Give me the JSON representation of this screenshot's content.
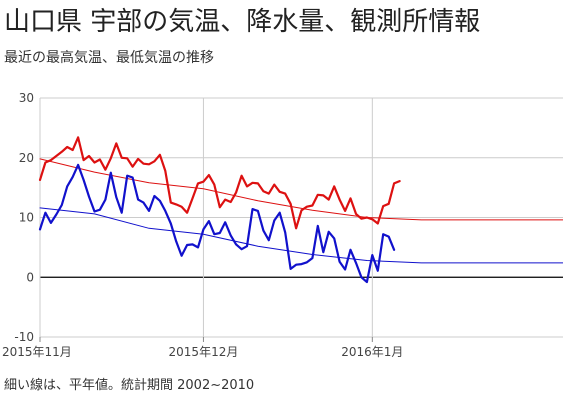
{
  "title": "山口県 宇部の気温、降水量、観測所情報",
  "subtitle": "最近の最高気温、最低気温の推移",
  "footnote": "細い線は、平年値。統計期間 2002~2010",
  "colors": {
    "high": "#dd1111",
    "low": "#1111cc",
    "normal_high": "#dd1111",
    "normal_low": "#1111cc",
    "grid": "#cccccc",
    "zero": "#000000"
  },
  "chart_data": {
    "type": "line",
    "ylim": [
      -10,
      30
    ],
    "yticks": [
      30,
      20,
      10,
      0,
      -10
    ],
    "xlabel": "",
    "ylabel": "",
    "x_range_days": [
      0,
      96
    ],
    "xticks": [
      {
        "day": 0,
        "label": "2015年11月"
      },
      {
        "day": 30,
        "label": "2015年12月"
      },
      {
        "day": 61,
        "label": "2016年1月"
      }
    ],
    "grid": true,
    "series": [
      {
        "key": "high",
        "x": [
          0,
          1,
          2,
          3,
          4,
          5,
          6,
          7,
          8,
          9,
          10,
          11,
          12,
          13,
          14,
          15,
          16,
          17,
          18,
          19,
          20,
          21,
          22,
          23,
          24,
          25,
          26,
          27,
          28,
          29,
          30,
          31,
          32,
          33,
          34,
          35,
          36,
          37,
          38,
          39,
          40,
          41,
          42,
          43,
          44,
          45,
          46,
          47,
          48,
          49,
          50,
          51,
          52,
          53,
          54,
          55,
          56,
          57,
          58,
          59,
          60,
          61,
          62,
          63,
          64,
          65,
          66
        ],
        "values": [
          16.3,
          19.2,
          19.6,
          20.3,
          21.0,
          21.8,
          21.3,
          23.4,
          19.6,
          20.3,
          19.2,
          19.7,
          18.0,
          19.9,
          22.4,
          20.0,
          19.9,
          18.5,
          19.8,
          19.0,
          18.9,
          19.4,
          20.5,
          17.8,
          12.5,
          12.2,
          11.8,
          10.8,
          13.2,
          15.7,
          16.0,
          17.1,
          15.5,
          11.7,
          13.0,
          12.6,
          14.2,
          17.0,
          15.2,
          15.8,
          15.7,
          14.4,
          14.0,
          15.5,
          14.3,
          14.0,
          12.3,
          8.2,
          11.2,
          11.8,
          12.0,
          13.8,
          13.7,
          13.0,
          15.2,
          13.0,
          11.1,
          13.2,
          10.6,
          9.8,
          10.0,
          9.7,
          9.0,
          11.9,
          12.3,
          15.7,
          16.1
        ]
      },
      {
        "key": "low",
        "x": [
          0,
          1,
          2,
          3,
          4,
          5,
          6,
          7,
          8,
          9,
          10,
          11,
          12,
          13,
          14,
          15,
          16,
          17,
          18,
          19,
          20,
          21,
          22,
          23,
          24,
          25,
          26,
          27,
          28,
          29,
          30,
          31,
          32,
          33,
          34,
          35,
          36,
          37,
          38,
          39,
          40,
          41,
          42,
          43,
          44,
          45,
          46,
          47,
          48,
          49,
          50,
          51,
          52,
          53,
          54,
          55,
          56,
          57,
          58,
          59,
          60,
          61,
          62,
          63,
          64,
          65,
          66
        ],
        "values": [
          8.0,
          10.8,
          9.1,
          10.5,
          12.1,
          15.2,
          16.8,
          18.8,
          16.3,
          13.5,
          11.0,
          11.3,
          13.0,
          17.5,
          13.4,
          10.8,
          17.0,
          16.7,
          13.0,
          12.5,
          11.1,
          13.6,
          12.8,
          11.1,
          9.0,
          6.0,
          3.6,
          5.4,
          5.5,
          5.0,
          8.0,
          9.4,
          7.2,
          7.4,
          9.2,
          7.0,
          5.5,
          4.7,
          5.2,
          11.4,
          11.1,
          7.8,
          6.2,
          9.5,
          10.8,
          7.5,
          1.4,
          2.1,
          2.2,
          2.5,
          3.2,
          8.6,
          4.2,
          7.6,
          6.5,
          2.6,
          1.3,
          4.6,
          2.4,
          0.0,
          -0.8,
          3.7,
          1.1,
          7.2,
          6.8,
          4.6,
          null
        ]
      },
      {
        "key": "normal_high",
        "x": [
          0,
          10,
          20,
          30,
          40,
          50,
          60,
          70,
          80,
          96
        ],
        "values": [
          19.8,
          17.6,
          15.8,
          14.8,
          12.8,
          11.2,
          10.0,
          9.6,
          9.6,
          9.6
        ]
      },
      {
        "key": "normal_low",
        "x": [
          0,
          10,
          20,
          30,
          40,
          50,
          60,
          70,
          80,
          96
        ],
        "values": [
          11.6,
          10.6,
          8.2,
          7.2,
          5.2,
          3.8,
          2.8,
          2.4,
          2.4,
          2.4
        ]
      }
    ]
  }
}
